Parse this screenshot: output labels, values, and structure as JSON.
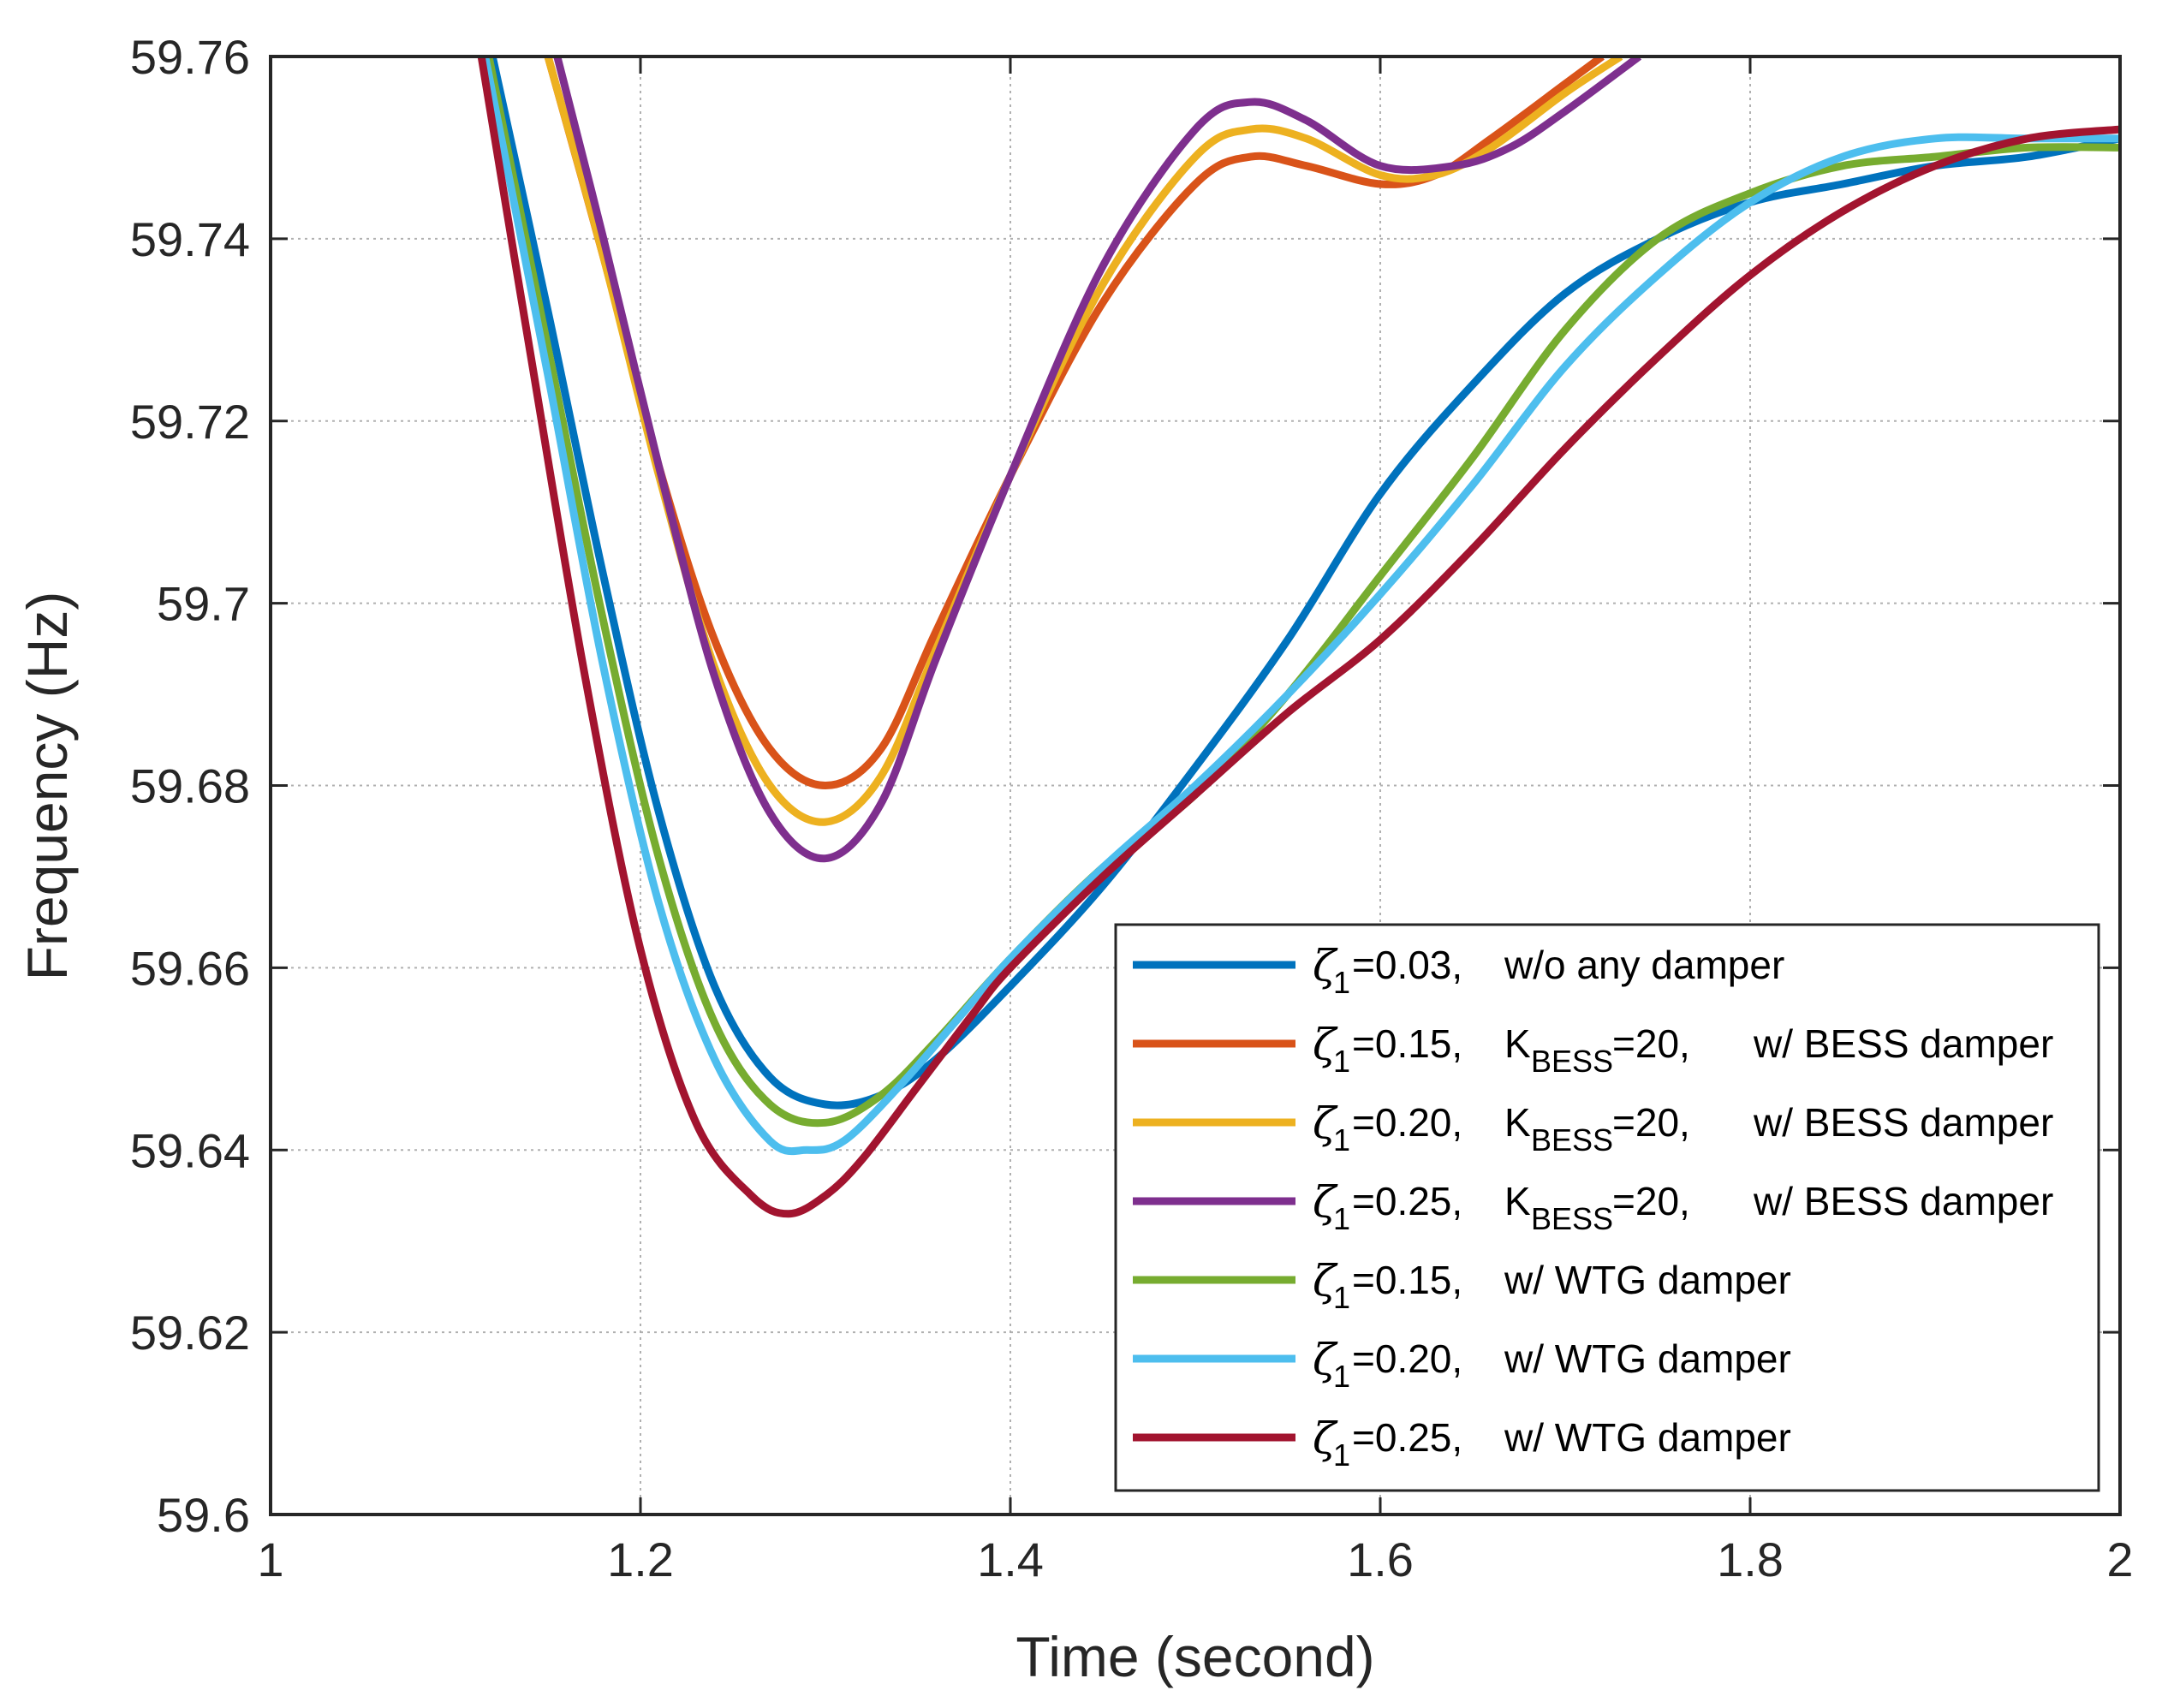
{
  "chart_data": {
    "type": "line",
    "title": "",
    "xlabel": "Time (second)",
    "ylabel": "Frequency (Hz)",
    "xlim": [
      1,
      2
    ],
    "ylim": [
      59.6,
      59.76
    ],
    "grid": true,
    "legend_position": "bottom-right",
    "x_ticks": [
      "1",
      "1.2",
      "1.4",
      "1.6",
      "1.8",
      "2"
    ],
    "x_tick_values": [
      1,
      1.2,
      1.4,
      1.6,
      1.8,
      2
    ],
    "y_ticks": [
      "59.6",
      "59.62",
      "59.64",
      "59.66",
      "59.68",
      "59.7",
      "59.72",
      "59.74",
      "59.76"
    ],
    "y_tick_values": [
      59.6,
      59.62,
      59.64,
      59.66,
      59.68,
      59.7,
      59.72,
      59.74,
      59.76
    ],
    "series": [
      {
        "name": "ζ1=0.03, w/o any damper",
        "legend": {
          "zeta": "ζ",
          "zeta_sub": "1",
          "value": "=0.03,",
          "k": "",
          "k_sub": "",
          "k_value": "",
          "desc": "w/o any damper"
        },
        "color": "#0072BD",
        "x": [
          1.12,
          1.15,
          1.18,
          1.21,
          1.24,
          1.27,
          1.3,
          1.33,
          1.36,
          1.4,
          1.45,
          1.5,
          1.55,
          1.6,
          1.65,
          1.7,
          1.75,
          1.8,
          1.85,
          1.9,
          1.95,
          2.0
        ],
        "y": [
          59.76,
          59.732,
          59.703,
          59.677,
          59.658,
          59.648,
          59.645,
          59.646,
          59.65,
          59.658,
          59.669,
          59.682,
          59.696,
          59.712,
          59.724,
          59.734,
          59.74,
          59.744,
          59.746,
          59.748,
          59.749,
          59.751
        ]
      },
      {
        "name": "ζ1=0.15, KBESS=20, w/ BESS damper",
        "legend": {
          "zeta": "ζ",
          "zeta_sub": "1",
          "value": "=0.15,",
          "k": "K",
          "k_sub": "BESS",
          "k_value": "=20,",
          "desc": "w/ BESS damper"
        },
        "color": "#D95319",
        "x": [
          1.15,
          1.18,
          1.21,
          1.24,
          1.27,
          1.3,
          1.33,
          1.36,
          1.4,
          1.45,
          1.5,
          1.53,
          1.56,
          1.6,
          1.63,
          1.66,
          1.7,
          1.72
        ],
        "y": [
          59.76,
          59.738,
          59.715,
          59.696,
          59.684,
          59.68,
          59.684,
          59.697,
          59.714,
          59.733,
          59.746,
          59.749,
          59.748,
          59.746,
          59.747,
          59.751,
          59.757,
          59.76
        ]
      },
      {
        "name": "ζ1=0.20, KBESS=20, w/ BESS damper",
        "legend": {
          "zeta": "ζ",
          "zeta_sub": "1",
          "value": "=0.20,",
          "k": "K",
          "k_sub": "BESS",
          "k_value": "=20,",
          "desc": "w/ BESS damper"
        },
        "color": "#EDB120",
        "x": [
          1.15,
          1.18,
          1.21,
          1.24,
          1.27,
          1.3,
          1.33,
          1.36,
          1.4,
          1.45,
          1.5,
          1.53,
          1.56,
          1.6,
          1.63,
          1.66,
          1.7,
          1.73
        ],
        "y": [
          59.76,
          59.738,
          59.714,
          59.693,
          59.68,
          59.676,
          59.681,
          59.695,
          59.714,
          59.735,
          59.749,
          59.752,
          59.751,
          59.747,
          59.747,
          59.75,
          59.756,
          59.76
        ]
      },
      {
        "name": "ζ1=0.25, KBESS=20, w/ BESS damper",
        "legend": {
          "zeta": "ζ",
          "zeta_sub": "1",
          "value": "=0.25,",
          "k": "K",
          "k_sub": "BESS",
          "k_value": "=20,",
          "desc": "w/ BESS damper"
        },
        "color": "#7E2F8E",
        "x": [
          1.155,
          1.18,
          1.21,
          1.24,
          1.27,
          1.3,
          1.33,
          1.36,
          1.4,
          1.45,
          1.5,
          1.53,
          1.56,
          1.6,
          1.64,
          1.67,
          1.7,
          1.74
        ],
        "y": [
          59.76,
          59.74,
          59.715,
          59.692,
          59.677,
          59.672,
          59.678,
          59.694,
          59.714,
          59.737,
          59.752,
          59.755,
          59.753,
          59.748,
          59.748,
          59.75,
          59.754,
          59.76
        ]
      },
      {
        "name": "ζ1=0.15, w/ WTG damper",
        "legend": {
          "zeta": "ζ",
          "zeta_sub": "1",
          "value": "=0.15,",
          "k": "",
          "k_sub": "",
          "k_value": "",
          "desc": "w/ WTG damper"
        },
        "color": "#77AC30",
        "x": [
          1.118,
          1.15,
          1.18,
          1.21,
          1.24,
          1.27,
          1.3,
          1.33,
          1.36,
          1.4,
          1.45,
          1.5,
          1.55,
          1.6,
          1.65,
          1.7,
          1.75,
          1.8,
          1.85,
          1.9,
          1.95,
          2.0
        ],
        "y": [
          59.76,
          59.728,
          59.698,
          59.672,
          59.654,
          59.645,
          59.643,
          59.646,
          59.652,
          59.661,
          59.671,
          59.679,
          59.69,
          59.703,
          59.716,
          59.73,
          59.74,
          59.745,
          59.748,
          59.749,
          59.75,
          59.75
        ]
      },
      {
        "name": "ζ1=0.20, w/ WTG damper",
        "legend": {
          "zeta": "ζ",
          "zeta_sub": "1",
          "value": "=0.20,",
          "k": "",
          "k_sub": "",
          "k_value": "",
          "desc": "w/ WTG damper"
        },
        "color": "#4DBEEE",
        "x": [
          1.116,
          1.15,
          1.18,
          1.21,
          1.24,
          1.27,
          1.29,
          1.31,
          1.34,
          1.37,
          1.4,
          1.45,
          1.5,
          1.55,
          1.6,
          1.65,
          1.7,
          1.75,
          1.8,
          1.85,
          1.9,
          1.95,
          2.0
        ],
        "y": [
          59.76,
          59.725,
          59.693,
          59.667,
          59.65,
          59.641,
          59.64,
          59.641,
          59.647,
          59.654,
          59.661,
          59.671,
          59.68,
          59.69,
          59.701,
          59.713,
          59.726,
          59.736,
          59.744,
          59.749,
          59.751,
          59.751,
          59.751
        ]
      },
      {
        "name": "ζ1=0.25, w/ WTG damper",
        "legend": {
          "zeta": "ζ",
          "zeta_sub": "1",
          "value": "=0.25,",
          "k": "",
          "k_sub": "",
          "k_value": "",
          "desc": "w/ WTG damper"
        },
        "color": "#A2142F",
        "x": [
          1.114,
          1.14,
          1.17,
          1.2,
          1.23,
          1.26,
          1.28,
          1.3,
          1.32,
          1.35,
          1.38,
          1.4,
          1.45,
          1.5,
          1.55,
          1.6,
          1.65,
          1.7,
          1.75,
          1.8,
          1.85,
          1.9,
          1.95,
          2.0
        ],
        "y": [
          59.76,
          59.728,
          59.692,
          59.662,
          59.643,
          59.635,
          59.633,
          59.635,
          59.639,
          59.647,
          59.655,
          59.66,
          59.67,
          59.679,
          59.688,
          59.696,
          59.706,
          59.717,
          59.727,
          59.736,
          59.743,
          59.748,
          59.751,
          59.752
        ]
      }
    ]
  }
}
